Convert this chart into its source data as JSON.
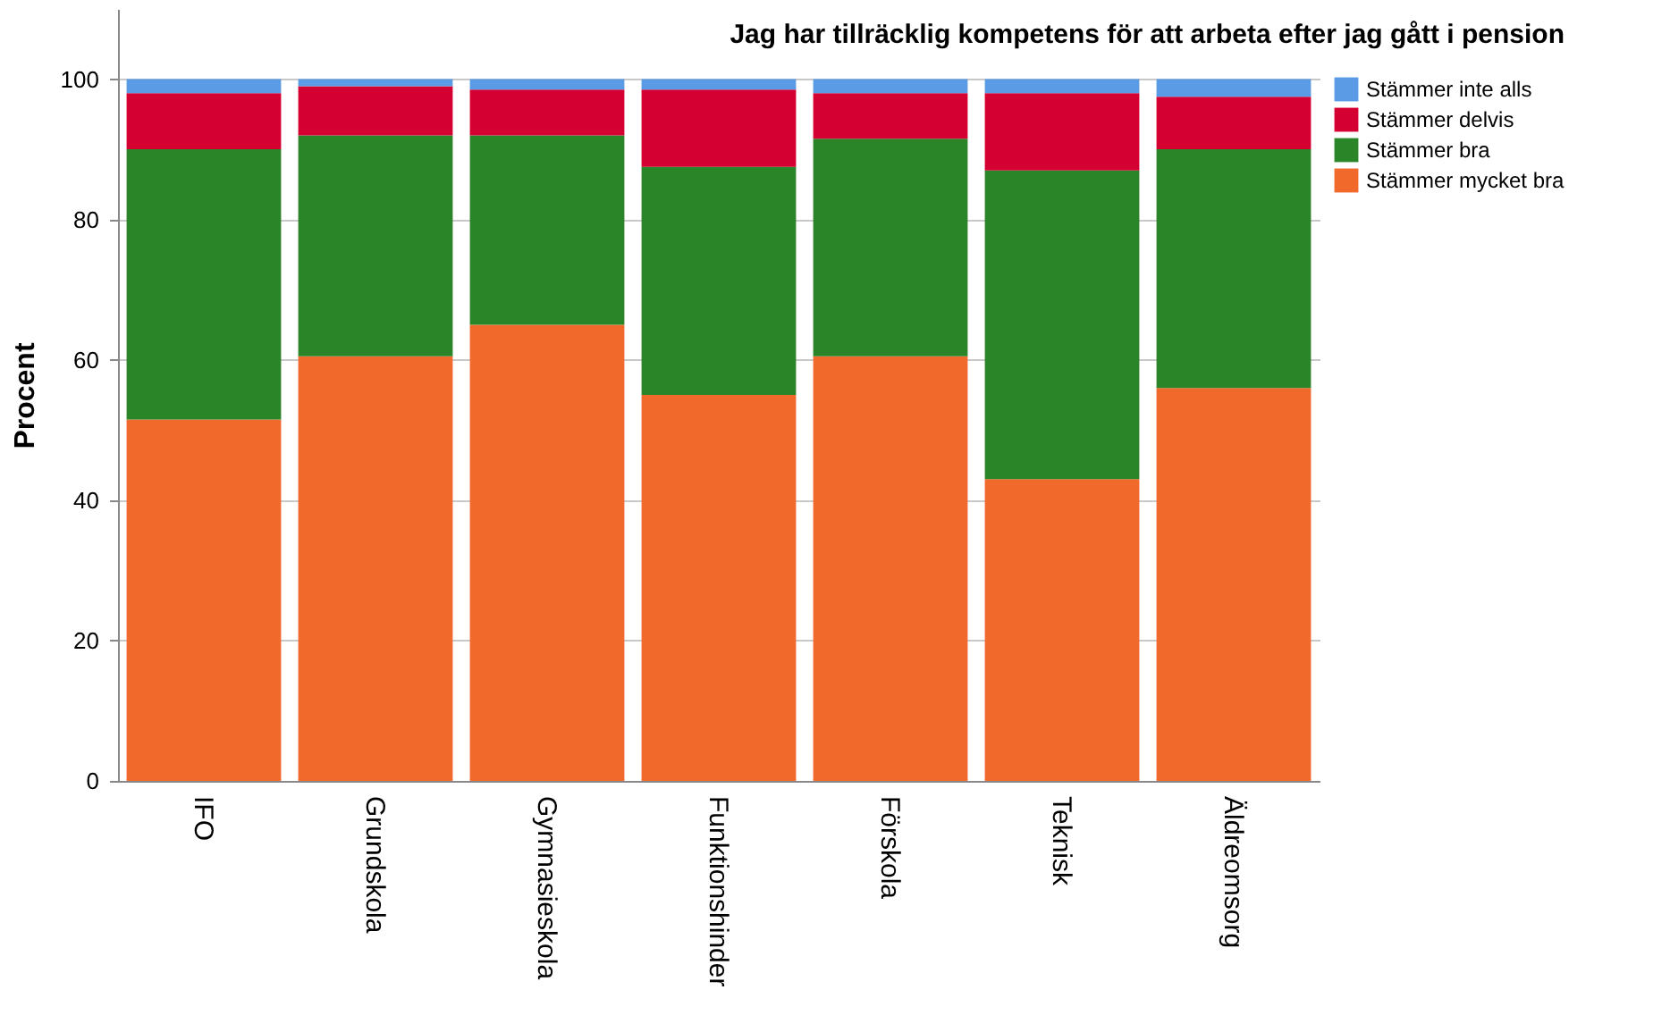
{
  "chart_data": {
    "type": "bar",
    "stacked": true,
    "title": "Jag har tillräcklig kompetens för att arbeta efter jag gått i pension",
    "ylabel": "Procent",
    "categories": [
      "IFO",
      "Grundskola",
      "Gymnasieskola",
      "Funktionshinder",
      "Förskola",
      "Teknisk",
      "Äldreomsorg"
    ],
    "series": [
      {
        "name": "Stämmer mycket bra",
        "color": "#f2692c",
        "values": [
          51.5,
          60.5,
          65,
          55,
          60.5,
          43,
          56
        ]
      },
      {
        "name": "Stämmer bra",
        "color": "#2a8529",
        "values": [
          38.5,
          31.5,
          27,
          32.5,
          31,
          44,
          34
        ]
      },
      {
        "name": "Stämmer delvis",
        "color": "#d50032",
        "values": [
          8,
          7,
          6.5,
          11,
          6.5,
          11,
          7.5
        ]
      },
      {
        "name": "Stämmer inte alls",
        "color": "#5b9be6",
        "values": [
          2,
          1,
          1.5,
          1.5,
          2,
          2,
          2.5
        ]
      }
    ],
    "ylim": [
      0,
      110
    ],
    "yticks": [
      0,
      20,
      40,
      60,
      80,
      100
    ],
    "grid": "y",
    "legend": "top right"
  }
}
